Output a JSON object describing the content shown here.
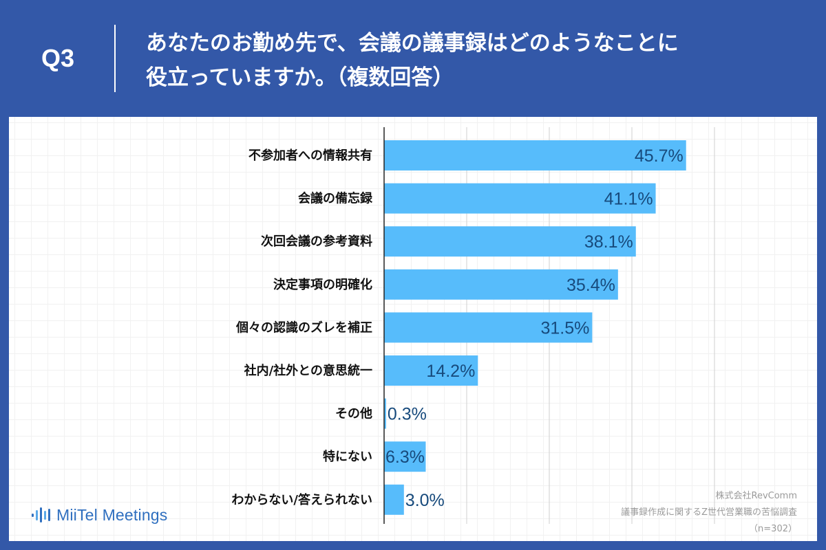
{
  "question": {
    "number": "Q3",
    "line1": "あなたのお勤め先で、会議の議事録はどのようなことに",
    "line2": "役立っていますか。（複数回答）"
  },
  "chart_data": {
    "type": "bar",
    "orientation": "horizontal",
    "categories": [
      "不参加者への情報共有",
      "会議の備忘録",
      "次回会議の参考資料",
      "決定事項の明確化",
      "個々の認識のズレを補正",
      "社内/社外との意思統一",
      "その他",
      "特にない",
      "わからない/答えられない"
    ],
    "values": [
      45.7,
      41.1,
      38.1,
      35.4,
      31.5,
      14.2,
      0.3,
      6.3,
      3.0
    ],
    "value_labels": [
      "45.7%",
      "41.1%",
      "38.1%",
      "35.4%",
      "31.5%",
      "14.2%",
      "0.3%",
      "6.3%",
      "3.0%"
    ],
    "xlim": [
      0,
      60
    ],
    "grid_step": 12.5,
    "grid": true,
    "bar_color": "#57bcfb",
    "label_color": "#174a7c"
  },
  "logo": {
    "brand": "MiiTel Meetings",
    "color": "#2f6fbf"
  },
  "source": {
    "company": "株式会社RevComm",
    "survey": "議事録作成に関するZ世代営業職の苦悩調査",
    "sample": "（n=302）"
  }
}
